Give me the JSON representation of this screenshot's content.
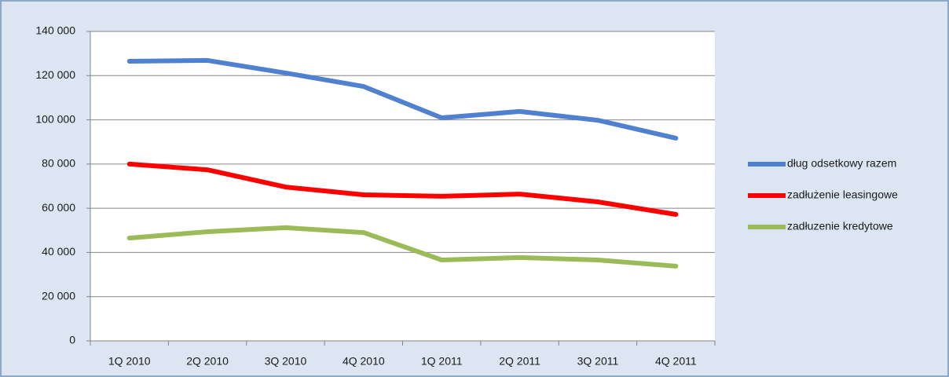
{
  "chart_data": {
    "type": "line",
    "categories": [
      "1Q 2010",
      "2Q 2010",
      "3Q 2010",
      "4Q 2010",
      "1Q 2011",
      "2Q 2011",
      "3Q 2011",
      "4Q 2011"
    ],
    "series": [
      {
        "name": "dług odsetkowy razem",
        "color": "#4f81d0",
        "values": [
          126500,
          126900,
          121200,
          115100,
          100900,
          103800,
          99800,
          91700
        ]
      },
      {
        "name": "zadłużenie leasingowe",
        "color": "#ff0000",
        "values": [
          80000,
          77400,
          69600,
          66100,
          65400,
          66400,
          62900,
          57200
        ]
      },
      {
        "name": "zadłuzenie kredytowe",
        "color": "#9bbb59",
        "values": [
          46500,
          49400,
          51200,
          49000,
          36600,
          37700,
          36600,
          33800
        ]
      }
    ],
    "ylim": [
      0,
      140000
    ],
    "yticks": [
      0,
      {
        "value": 20000,
        "label": "20 000"
      },
      {
        "value": 40000,
        "label": "40 000"
      },
      {
        "value": 60000,
        "label": "60 000"
      },
      {
        "value": 80000,
        "label": "80 000"
      },
      {
        "value": 100000,
        "label": "100 000"
      },
      {
        "value": 120000,
        "label": "120 000"
      },
      {
        "value": 140000,
        "label": "140 000"
      }
    ],
    "grid": true,
    "legend": "right"
  }
}
